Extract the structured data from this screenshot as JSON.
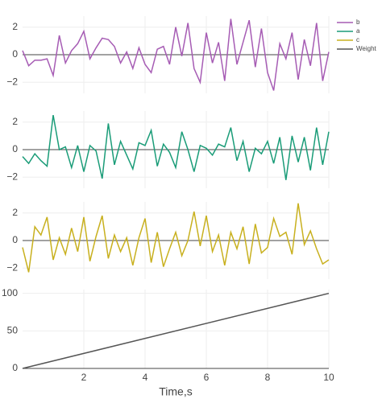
{
  "chart_data": [
    {
      "type": "line",
      "x": [
        0,
        0.2,
        0.4,
        0.6,
        0.8,
        1,
        1.2,
        1.4,
        1.6,
        1.8,
        2,
        2.2,
        2.4,
        2.6,
        2.8,
        3,
        3.2,
        3.4,
        3.6,
        3.8,
        4,
        4.2,
        4.4,
        4.6,
        4.8,
        5,
        5.2,
        5.4,
        5.6,
        5.8,
        6,
        6.2,
        6.4,
        6.6,
        6.8,
        7,
        7.2,
        7.4,
        7.6,
        7.8,
        8,
        8.2,
        8.4,
        8.6,
        8.8,
        9,
        9.2,
        9.4,
        9.6,
        9.8,
        10
      ],
      "series": [
        {
          "name": "b",
          "color": "#a65cb4",
          "values": [
            0.3,
            -0.8,
            -0.4,
            -0.4,
            -0.3,
            -1.5,
            1.4,
            -0.6,
            0.3,
            0.8,
            1.7,
            -0.3,
            0.5,
            1.2,
            1.1,
            0.6,
            -0.6,
            0.2,
            -1.0,
            0.5,
            -0.7,
            -1.3,
            0.4,
            0.6,
            -0.7,
            2.0,
            -0.1,
            2.3,
            -1.0,
            -2.0,
            1.6,
            -0.6,
            0.9,
            -1.9,
            2.6,
            -0.7,
            0.9,
            2.5,
            -0.9,
            1.9,
            -1.3,
            -2.6,
            0.8,
            -0.3,
            1.6,
            -1.8,
            1.1,
            -0.8,
            2.3,
            -1.9,
            0.2
          ]
        }
      ],
      "xlim": [
        0,
        10
      ],
      "ylim": [
        -2.8,
        2.8
      ],
      "yticks": [
        {
          "value": -2,
          "label": "−2"
        },
        0,
        2
      ],
      "zeroline": true,
      "grid": true
    },
    {
      "type": "line",
      "x": [
        0,
        0.2,
        0.4,
        0.6,
        0.8,
        1,
        1.2,
        1.4,
        1.6,
        1.8,
        2,
        2.2,
        2.4,
        2.6,
        2.8,
        3,
        3.2,
        3.4,
        3.6,
        3.8,
        4,
        4.2,
        4.4,
        4.6,
        4.8,
        5,
        5.2,
        5.4,
        5.6,
        5.8,
        6,
        6.2,
        6.4,
        6.6,
        6.8,
        7,
        7.2,
        7.4,
        7.6,
        7.8,
        8,
        8.2,
        8.4,
        8.6,
        8.8,
        9,
        9.2,
        9.4,
        9.6,
        9.8,
        10
      ],
      "series": [
        {
          "name": "a",
          "color": "#1a9c78",
          "values": [
            -0.5,
            -1.0,
            -0.3,
            -0.8,
            -1.2,
            2.5,
            0.0,
            0.2,
            -1.3,
            0.3,
            -1.6,
            0.3,
            -0.1,
            -2.1,
            1.9,
            -1.1,
            0.6,
            -0.4,
            -1.4,
            0.5,
            0.3,
            1.4,
            -1.2,
            0.4,
            -0.2,
            -1.3,
            1.3,
            0.0,
            -1.6,
            0.3,
            0.1,
            -0.4,
            0.4,
            0.2,
            1.6,
            -0.8,
            0.6,
            -1.6,
            0.1,
            -0.3,
            0.6,
            -1.0,
            0.9,
            -2.2,
            1.0,
            -0.9,
            0.9,
            -1.5,
            1.6,
            -1.1,
            1.3
          ]
        }
      ],
      "xlim": [
        0,
        10
      ],
      "ylim": [
        -2.8,
        2.8
      ],
      "yticks": [
        {
          "value": -2,
          "label": "−2"
        },
        0,
        2
      ],
      "zeroline": true,
      "grid": true
    },
    {
      "type": "line",
      "x": [
        0,
        0.2,
        0.4,
        0.6,
        0.8,
        1,
        1.2,
        1.4,
        1.6,
        1.8,
        2,
        2.2,
        2.4,
        2.6,
        2.8,
        3,
        3.2,
        3.4,
        3.6,
        3.8,
        4,
        4.2,
        4.4,
        4.6,
        4.8,
        5,
        5.2,
        5.4,
        5.6,
        5.8,
        6,
        6.2,
        6.4,
        6.6,
        6.8,
        7,
        7.2,
        7.4,
        7.6,
        7.8,
        8,
        8.2,
        8.4,
        8.6,
        8.8,
        9,
        9.2,
        9.4,
        9.6,
        9.8,
        10
      ],
      "series": [
        {
          "name": "c",
          "color": "#c8b01e",
          "values": [
            -0.5,
            -2.3,
            1.0,
            0.4,
            1.7,
            -1.4,
            0.2,
            -1.0,
            0.9,
            -0.8,
            1.7,
            -1.5,
            0.3,
            1.8,
            -1.3,
            0.4,
            -0.8,
            0.2,
            -1.8,
            0.2,
            1.6,
            -1.6,
            0.6,
            -1.9,
            -0.6,
            0.6,
            -1.1,
            0.0,
            2.1,
            -0.4,
            1.8,
            -0.8,
            0.4,
            -1.8,
            0.6,
            -0.6,
            1.0,
            -1.7,
            1.2,
            -0.9,
            -0.5,
            1.6,
            0.3,
            0.6,
            -1.0,
            2.7,
            -0.3,
            0.7,
            -0.6,
            -1.7,
            -1.4
          ]
        }
      ],
      "xlim": [
        0,
        10
      ],
      "ylim": [
        -2.8,
        2.8
      ],
      "yticks": [
        {
          "value": -2,
          "label": "−2"
        },
        0,
        2
      ],
      "zeroline": true,
      "grid": true
    },
    {
      "type": "line",
      "x": [
        0,
        10
      ],
      "series": [
        {
          "name": "Weight",
          "color": "#555555",
          "values": [
            0,
            100
          ]
        }
      ],
      "xlim": [
        0,
        10
      ],
      "ylim": [
        0,
        105
      ],
      "yticks": [
        0,
        50,
        100
      ],
      "xticks": [
        2,
        4,
        6,
        8,
        10
      ],
      "xlabel": "Time,s",
      "zeroline": true,
      "grid": true,
      "legend": "right"
    }
  ]
}
